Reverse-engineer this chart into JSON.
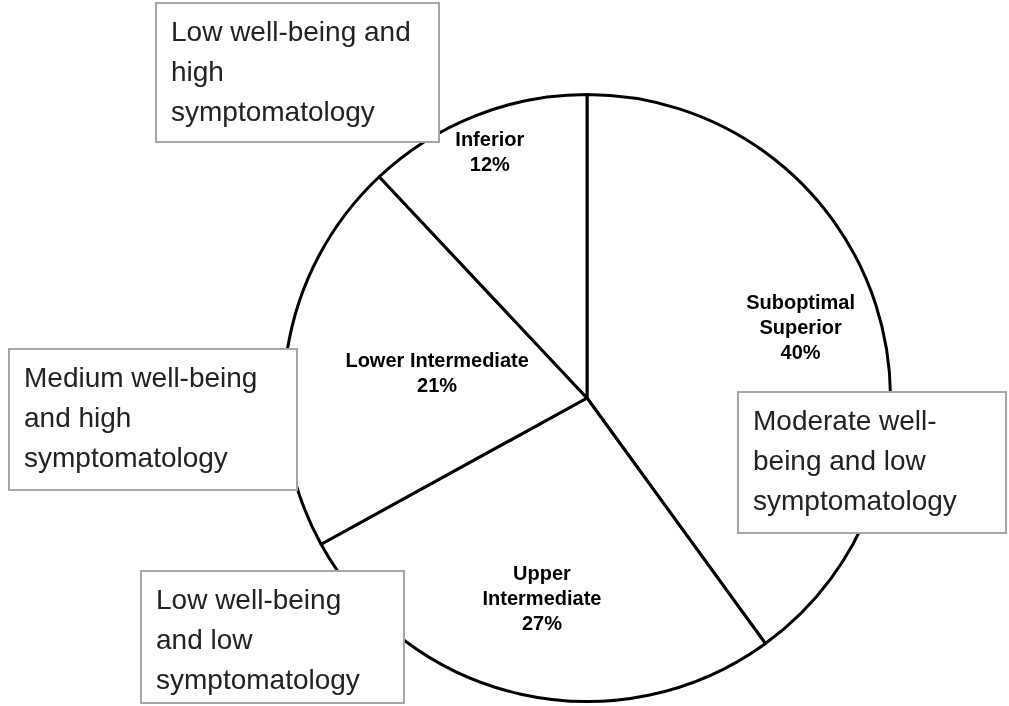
{
  "chart_data": {
    "type": "pie",
    "categories": [
      "Suboptimal Superior",
      "Upper Intermediate",
      "Lower Intermediate",
      "Inferior"
    ],
    "values": [
      40,
      27,
      21,
      12
    ],
    "colors": [
      "#ffffff",
      "#ffffff",
      "#ffffff",
      "#ffffff"
    ],
    "value_labels": [
      "40%",
      "27%",
      "21%",
      "12%"
    ],
    "legend": false,
    "annotations": [
      "Moderate well-being and low symptomatology",
      "Low well-being and low symptomatology",
      "Medium well-being and high symptomatology",
      "Low well-being and high symptomatology"
    ]
  }
}
